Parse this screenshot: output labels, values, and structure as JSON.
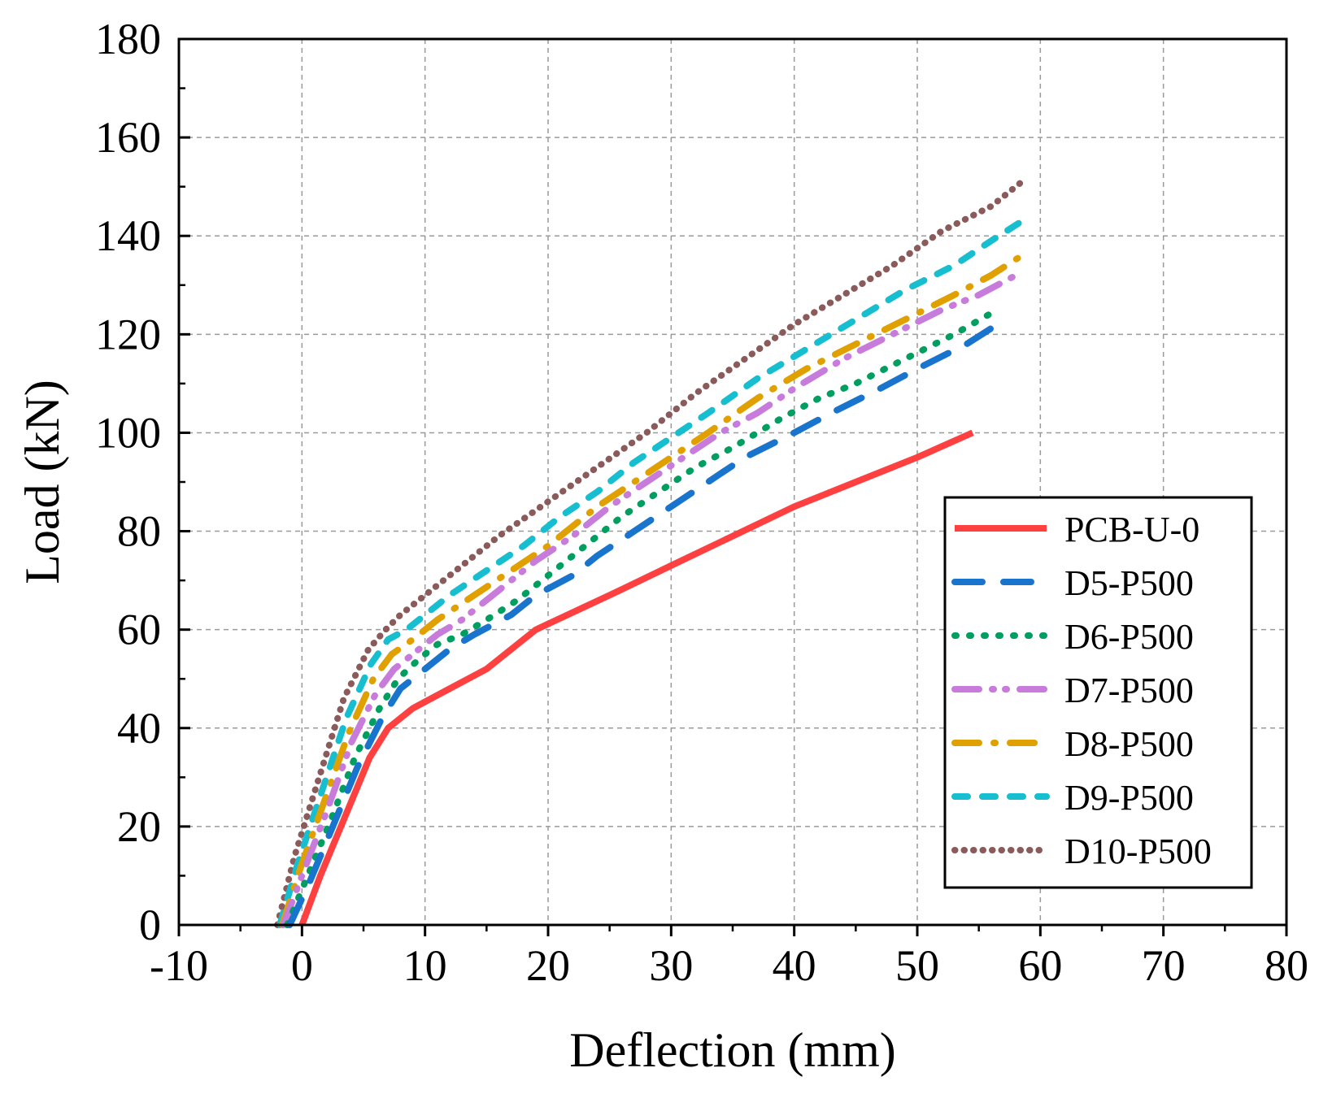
{
  "chart_data": {
    "type": "line",
    "title": "",
    "xlabel": "Deflection (mm)",
    "ylabel": "Load (kN)",
    "xlim": [
      -10,
      80
    ],
    "ylim": [
      0,
      180
    ],
    "xticks": [
      -10,
      0,
      10,
      20,
      30,
      40,
      50,
      60,
      70,
      80
    ],
    "yticks": [
      0,
      20,
      40,
      60,
      80,
      100,
      120,
      140,
      160,
      180
    ],
    "grid": true,
    "legend_position": "lower-right",
    "series": [
      {
        "name": "PCB-U-0",
        "color": "#FF4040",
        "style": "solid",
        "x": [
          0,
          1.5,
          3.5,
          5.5,
          7,
          9,
          12,
          15,
          19,
          25,
          30,
          35,
          40,
          45,
          50,
          54.5
        ],
        "y": [
          0,
          10,
          22,
          34,
          40,
          44,
          48,
          52,
          60,
          67,
          73,
          79,
          85,
          90,
          95,
          100
        ]
      },
      {
        "name": "D5-P500",
        "color": "#1874CD",
        "style": "dash",
        "x": [
          -1,
          0.5,
          2.5,
          4.5,
          6.5,
          8,
          10,
          12,
          14,
          17,
          19,
          22,
          24,
          27,
          30,
          33,
          36,
          40,
          43,
          47,
          50,
          54,
          56.5
        ],
        "y": [
          0,
          8,
          20,
          32,
          42,
          48,
          52,
          56,
          59,
          63,
          67,
          71,
          75,
          80,
          85,
          90,
          95,
          100,
          104,
          109,
          113,
          118,
          122
        ]
      },
      {
        "name": "D6-P500",
        "color": "#009E60",
        "style": "dot",
        "x": [
          -1.2,
          0.3,
          2.3,
          4.3,
          6.3,
          7.8,
          9.5,
          11,
          13,
          15,
          17.5,
          20,
          23,
          26,
          29,
          32,
          35,
          39,
          42,
          45,
          49,
          53,
          56.5
        ],
        "y": [
          0,
          9,
          21,
          34,
          44,
          50,
          54,
          57,
          59,
          62,
          66,
          71,
          77,
          83,
          88,
          93,
          97,
          103,
          107,
          110,
          115,
          120,
          125
        ]
      },
      {
        "name": "D7-P500",
        "color": "#C77CDB",
        "style": "dashdotdot",
        "x": [
          -1.5,
          0,
          2,
          4,
          6,
          7.5,
          9,
          11,
          13,
          16,
          19,
          22,
          25,
          28,
          31,
          34,
          37,
          40,
          44,
          48,
          52,
          55,
          58
        ],
        "y": [
          0,
          10,
          23,
          37,
          47,
          52,
          55,
          59,
          62,
          68,
          74,
          79,
          85,
          90,
          95,
          100,
          104,
          109,
          115,
          120,
          125,
          128,
          132
        ]
      },
      {
        "name": "D8-P500",
        "color": "#E0A000",
        "style": "dashdot",
        "x": [
          -1.6,
          -0.2,
          1.8,
          3.8,
          5.8,
          7.3,
          9,
          11,
          14,
          17,
          20,
          24,
          27,
          30,
          33,
          37,
          41,
          45,
          49,
          53,
          56,
          58.5
        ],
        "y": [
          0,
          11,
          25,
          39,
          50,
          55,
          58,
          62,
          67,
          72,
          77,
          85,
          90,
          95,
          100,
          107,
          113,
          118,
          123,
          128,
          132,
          136
        ]
      },
      {
        "name": "D9-P500",
        "color": "#17BECF",
        "style": "shortdash",
        "x": [
          -1.8,
          -0.4,
          1.6,
          3.6,
          5.6,
          7,
          8.5,
          10,
          12,
          15,
          18,
          21,
          24,
          27,
          30,
          33,
          37,
          41,
          45,
          49,
          53,
          56,
          58.5
        ],
        "y": [
          0,
          12,
          27,
          42,
          53,
          58,
          60,
          63,
          67,
          72,
          77,
          83,
          88,
          94,
          99,
          104,
          111,
          117,
          123,
          129,
          134,
          139,
          143
        ]
      },
      {
        "name": "D10-P500",
        "color": "#8B5A5A",
        "style": "dotted",
        "x": [
          -2,
          -0.6,
          1.4,
          3.4,
          5.4,
          6.8,
          8,
          10,
          13,
          16,
          20,
          24,
          28,
          32,
          36,
          40,
          44,
          48,
          52,
          56,
          58.5
        ],
        "y": [
          0,
          14,
          30,
          46,
          56,
          60,
          63,
          67,
          73,
          79,
          86,
          93,
          100,
          108,
          115,
          122,
          128,
          134,
          141,
          146,
          151
        ]
      }
    ]
  }
}
